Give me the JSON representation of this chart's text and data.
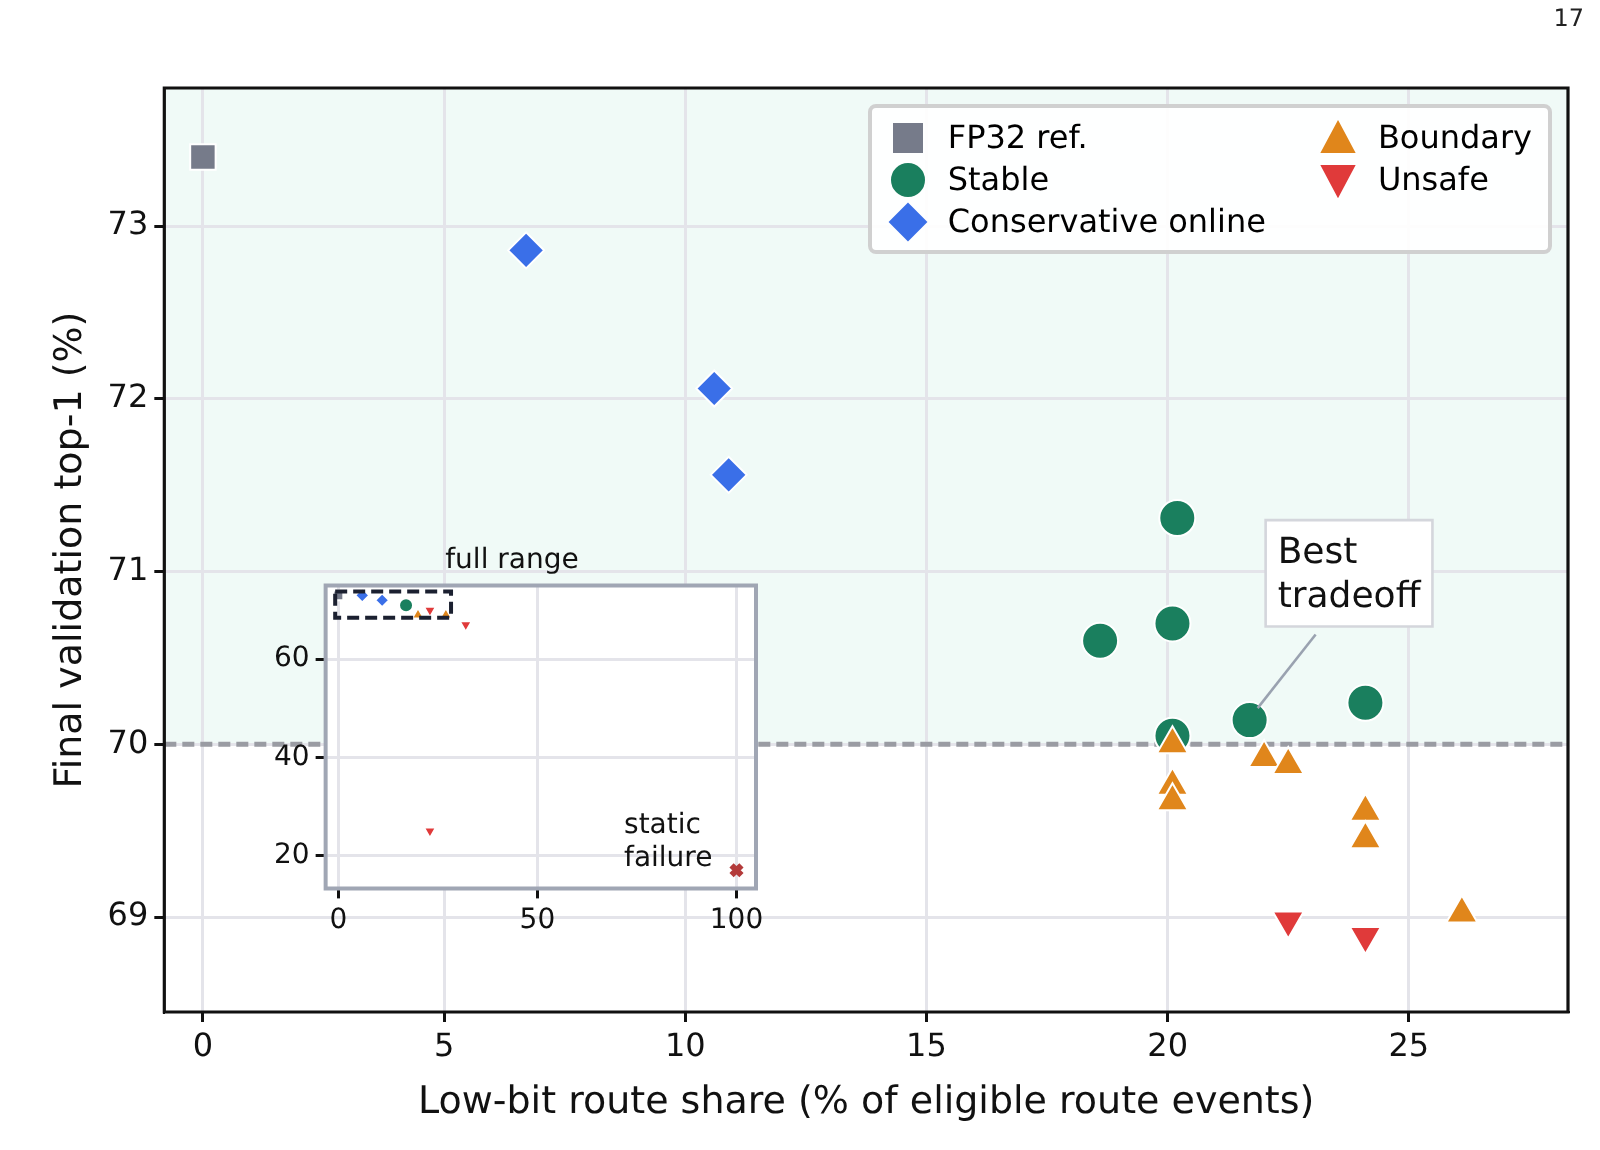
{
  "chart_data": [
    {
      "type": "scatter",
      "xlabel": "Low-bit route share (% of eligible route events)",
      "ylabel": "Final validation top-1 (%)",
      "xlim": [
        -0.8,
        28.3
      ],
      "ylim": [
        68.45,
        73.8
      ],
      "xticks": [
        0,
        5,
        10,
        15,
        20,
        25
      ],
      "yticks": [
        69,
        70,
        71,
        72,
        73
      ],
      "grid": true,
      "legend": "top right",
      "ref_lines": [
        {
          "axis": "y",
          "value": 70,
          "color": "#9a9ca3",
          "line_style": "dashed"
        }
      ],
      "bands": [
        {
          "axis": "y",
          "from": 70,
          "to": 73.8,
          "color": "#f0faf7"
        }
      ],
      "annotations": [
        {
          "text": "Best tradeoff",
          "x": 21.7,
          "y": 70.14
        },
        "17"
      ],
      "series": [
        {
          "name": "FP32 ref.",
          "color": "#767b8a",
          "marker": "square",
          "x": [
            0
          ],
          "values": [
            73.4
          ]
        },
        {
          "name": "Stable",
          "color": "#1a7f5e",
          "marker": "circle",
          "x": [
            20.2,
            20.1,
            18.6,
            20.1,
            21.7,
            24.1
          ],
          "values": [
            71.31,
            70.7,
            70.6,
            70.05,
            70.14,
            70.24
          ]
        },
        {
          "name": "Conservative online",
          "color": "#3a6fe8",
          "marker": "diamond",
          "x": [
            6.7,
            10.6,
            10.9
          ],
          "values": [
            72.86,
            72.06,
            71.56
          ]
        },
        {
          "name": "Boundary",
          "color": "#e0861b",
          "marker": "triangle",
          "x": [
            20.1,
            20.1,
            20.1,
            22.0,
            22.5,
            24.1,
            24.1,
            26.1
          ],
          "values": [
            70.0,
            69.76,
            69.67,
            69.92,
            69.88,
            69.61,
            69.45,
            69.02
          ]
        },
        {
          "name": "Unsafe",
          "color": "#e03a3a",
          "marker": "triangle-down",
          "x": [
            22.5,
            24.1
          ],
          "values": [
            68.98,
            68.89
          ]
        }
      ]
    },
    {
      "type": "scatter",
      "title": "full range",
      "xlim": [
        -3.2,
        104.9
      ],
      "ylim": [
        13.3,
        75
      ],
      "xticks": [
        0,
        50,
        100
      ],
      "yticks": [
        20,
        40,
        60
      ],
      "grid": true,
      "annotations": [
        {
          "text": "static failure",
          "x": 100,
          "y": 17
        }
      ],
      "series": [
        {
          "color": "#767b8a",
          "marker": "square",
          "x": [
            0
          ],
          "values": [
            73
          ]
        },
        {
          "color": "#1a7f5e",
          "marker": "circle",
          "x": [
            17
          ],
          "values": [
            71
          ]
        },
        {
          "color": "#3a6fe8",
          "marker": "diamond",
          "x": [
            6,
            11
          ],
          "values": [
            73,
            72
          ]
        },
        {
          "color": "#e0861b",
          "marker": "triangle",
          "x": [
            20,
            27
          ],
          "values": [
            69,
            69
          ]
        },
        {
          "color": "#e03a3a",
          "marker": "triangle-down",
          "x": [
            23,
            32,
            23
          ],
          "values": [
            70,
            67,
            25
          ]
        },
        {
          "color": "#b33a3a",
          "marker": "cross",
          "x": [
            100
          ],
          "values": [
            17
          ]
        }
      ]
    }
  ]
}
